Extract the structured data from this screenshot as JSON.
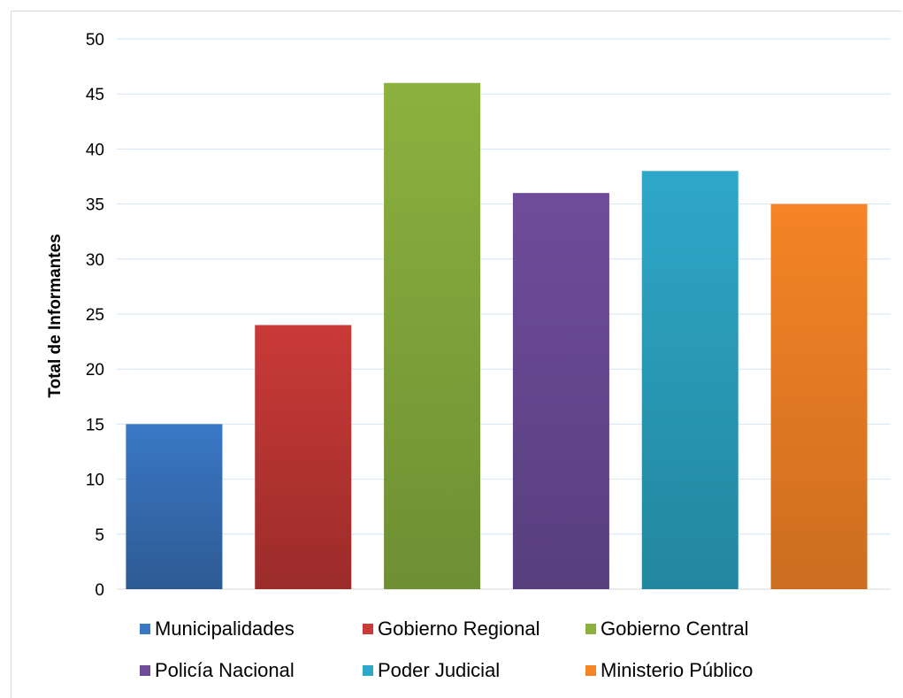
{
  "chart_data": {
    "type": "bar",
    "title": "",
    "xlabel": "",
    "ylabel": "Total de  Informantes",
    "ylim": [
      0,
      50
    ],
    "yticks": [
      0,
      5,
      10,
      15,
      20,
      25,
      30,
      35,
      40,
      45,
      50
    ],
    "grid": true,
    "legend_position": "bottom",
    "categories": [
      "Municipalidades",
      "Gobierno Regional",
      "Gobierno Central",
      "Policía Nacional",
      "Poder Judicial",
      "Ministerio Público"
    ],
    "values": [
      15,
      24,
      46,
      36,
      38,
      35
    ],
    "colors": [
      "#3a78c6",
      "#c93a38",
      "#8db13f",
      "#6f4c9b",
      "#2fa7c9",
      "#f58426"
    ],
    "colors_dark": [
      "#2e5a92",
      "#9b2c2a",
      "#6e8f33",
      "#573f7e",
      "#22879e",
      "#cc6d20"
    ]
  }
}
